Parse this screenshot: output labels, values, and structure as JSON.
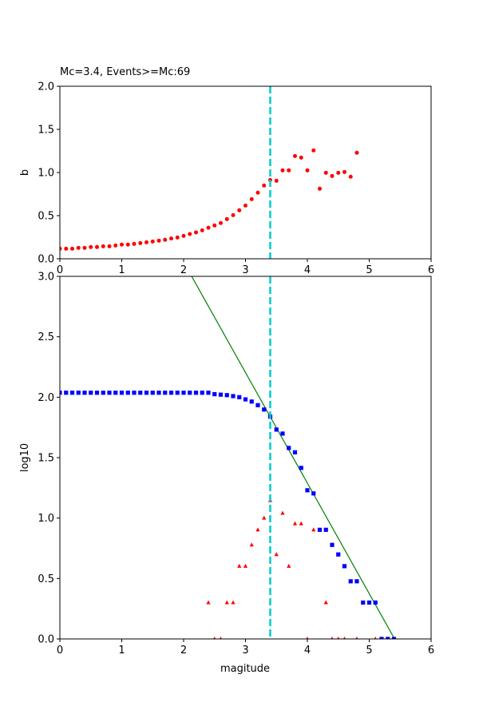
{
  "chart_data": [
    {
      "type": "scatter",
      "title": "Mc=3.4, Events>=Mc:69",
      "xlabel": "",
      "ylabel": "b",
      "xlim": [
        0,
        6
      ],
      "ylim": [
        0,
        2.0
      ],
      "xticks": [
        "0",
        "1",
        "2",
        "3",
        "4",
        "5",
        "6"
      ],
      "yticks": [
        "0.0",
        "0.5",
        "1.0",
        "1.5",
        "2.0"
      ],
      "grid": false,
      "vline": {
        "x": 3.4,
        "color": "#00cccc",
        "style": "dashed"
      },
      "series": [
        {
          "marker": "circle",
          "color": "#ff0000",
          "x": [
            0.0,
            0.1,
            0.2,
            0.3,
            0.4,
            0.5,
            0.6,
            0.7,
            0.8,
            0.9,
            1.0,
            1.1,
            1.2,
            1.3,
            1.4,
            1.5,
            1.6,
            1.7,
            1.8,
            1.9,
            2.0,
            2.1,
            2.2,
            2.3,
            2.4,
            2.5,
            2.6,
            2.7,
            2.8,
            2.9,
            3.0,
            3.1,
            3.2,
            3.3,
            3.4,
            3.5,
            3.6,
            3.7,
            3.8,
            3.9,
            4.0,
            4.1,
            4.2,
            4.3,
            4.4,
            4.5,
            4.6,
            4.7,
            4.8
          ],
          "y": [
            0.117,
            0.117,
            0.117,
            0.126,
            0.126,
            0.136,
            0.136,
            0.145,
            0.145,
            0.154,
            0.164,
            0.164,
            0.173,
            0.182,
            0.191,
            0.2,
            0.21,
            0.22,
            0.235,
            0.247,
            0.265,
            0.287,
            0.306,
            0.33,
            0.36,
            0.386,
            0.414,
            0.46,
            0.506,
            0.562,
            0.617,
            0.691,
            0.766,
            0.849,
            0.913,
            0.904,
            1.025,
            1.025,
            1.191,
            1.173,
            1.025,
            1.256,
            0.812,
            0.997,
            0.96,
            0.997,
            1.006,
            0.951,
            1.229
          ]
        }
      ]
    },
    {
      "type": "scatter",
      "title": "",
      "xlabel": "magitude",
      "ylabel": "log10",
      "xlim": [
        0,
        6
      ],
      "ylim": [
        0,
        3.0
      ],
      "xticks": [
        "0",
        "1",
        "2",
        "3",
        "4",
        "5",
        "6"
      ],
      "yticks": [
        "0.0",
        "0.5",
        "1.0",
        "1.5",
        "2.0",
        "2.5",
        "3.0"
      ],
      "grid": false,
      "vline": {
        "x": 3.4,
        "color": "#00cccc",
        "style": "dashed"
      },
      "fit_line": {
        "color": "#008000",
        "x": [
          2.13,
          5.41
        ],
        "y": [
          3.0,
          0.0
        ]
      },
      "series": [
        {
          "marker": "square",
          "color": "#0000ff",
          "x": [
            0.0,
            0.1,
            0.2,
            0.3,
            0.4,
            0.5,
            0.6,
            0.7,
            0.8,
            0.9,
            1.0,
            1.1,
            1.2,
            1.3,
            1.4,
            1.5,
            1.6,
            1.7,
            1.8,
            1.9,
            2.0,
            2.1,
            2.2,
            2.3,
            2.4,
            2.5,
            2.6,
            2.7,
            2.8,
            2.9,
            3.0,
            3.1,
            3.2,
            3.3,
            3.4,
            3.5,
            3.6,
            3.7,
            3.8,
            3.9,
            4.0,
            4.1,
            4.2,
            4.3,
            4.4,
            4.5,
            4.6,
            4.7,
            4.8,
            4.9,
            5.0,
            5.1,
            5.2,
            5.3,
            5.4
          ],
          "y": [
            2.037,
            2.037,
            2.037,
            2.037,
            2.037,
            2.037,
            2.037,
            2.037,
            2.037,
            2.037,
            2.037,
            2.037,
            2.037,
            2.037,
            2.037,
            2.037,
            2.037,
            2.037,
            2.037,
            2.037,
            2.037,
            2.037,
            2.037,
            2.037,
            2.037,
            2.025,
            2.021,
            2.017,
            2.009,
            2.0,
            1.982,
            1.964,
            1.934,
            1.898,
            1.839,
            1.732,
            1.699,
            1.58,
            1.544,
            1.415,
            1.23,
            1.204,
            0.903,
            0.903,
            0.778,
            0.699,
            0.602,
            0.477,
            0.477,
            0.301,
            0.301,
            0.301,
            0.0,
            0.0,
            0.0
          ]
        },
        {
          "marker": "triangle",
          "color": "#ff0000",
          "x": [
            2.4,
            2.5,
            2.6,
            2.7,
            2.8,
            2.9,
            3.0,
            3.1,
            3.2,
            3.3,
            3.4,
            3.5,
            3.6,
            3.7,
            3.8,
            3.9,
            4.0,
            4.1,
            4.3,
            4.4,
            4.5,
            4.6,
            4.8,
            5.1
          ],
          "y": [
            0.301,
            0.0,
            0.0,
            0.301,
            0.301,
            0.602,
            0.602,
            0.778,
            0.903,
            1.0,
            1.146,
            0.699,
            1.041,
            0.602,
            0.954,
            0.954,
            0.0,
            0.903,
            0.301,
            0.0,
            0.0,
            0.0,
            0.0,
            0.0
          ]
        }
      ]
    }
  ]
}
